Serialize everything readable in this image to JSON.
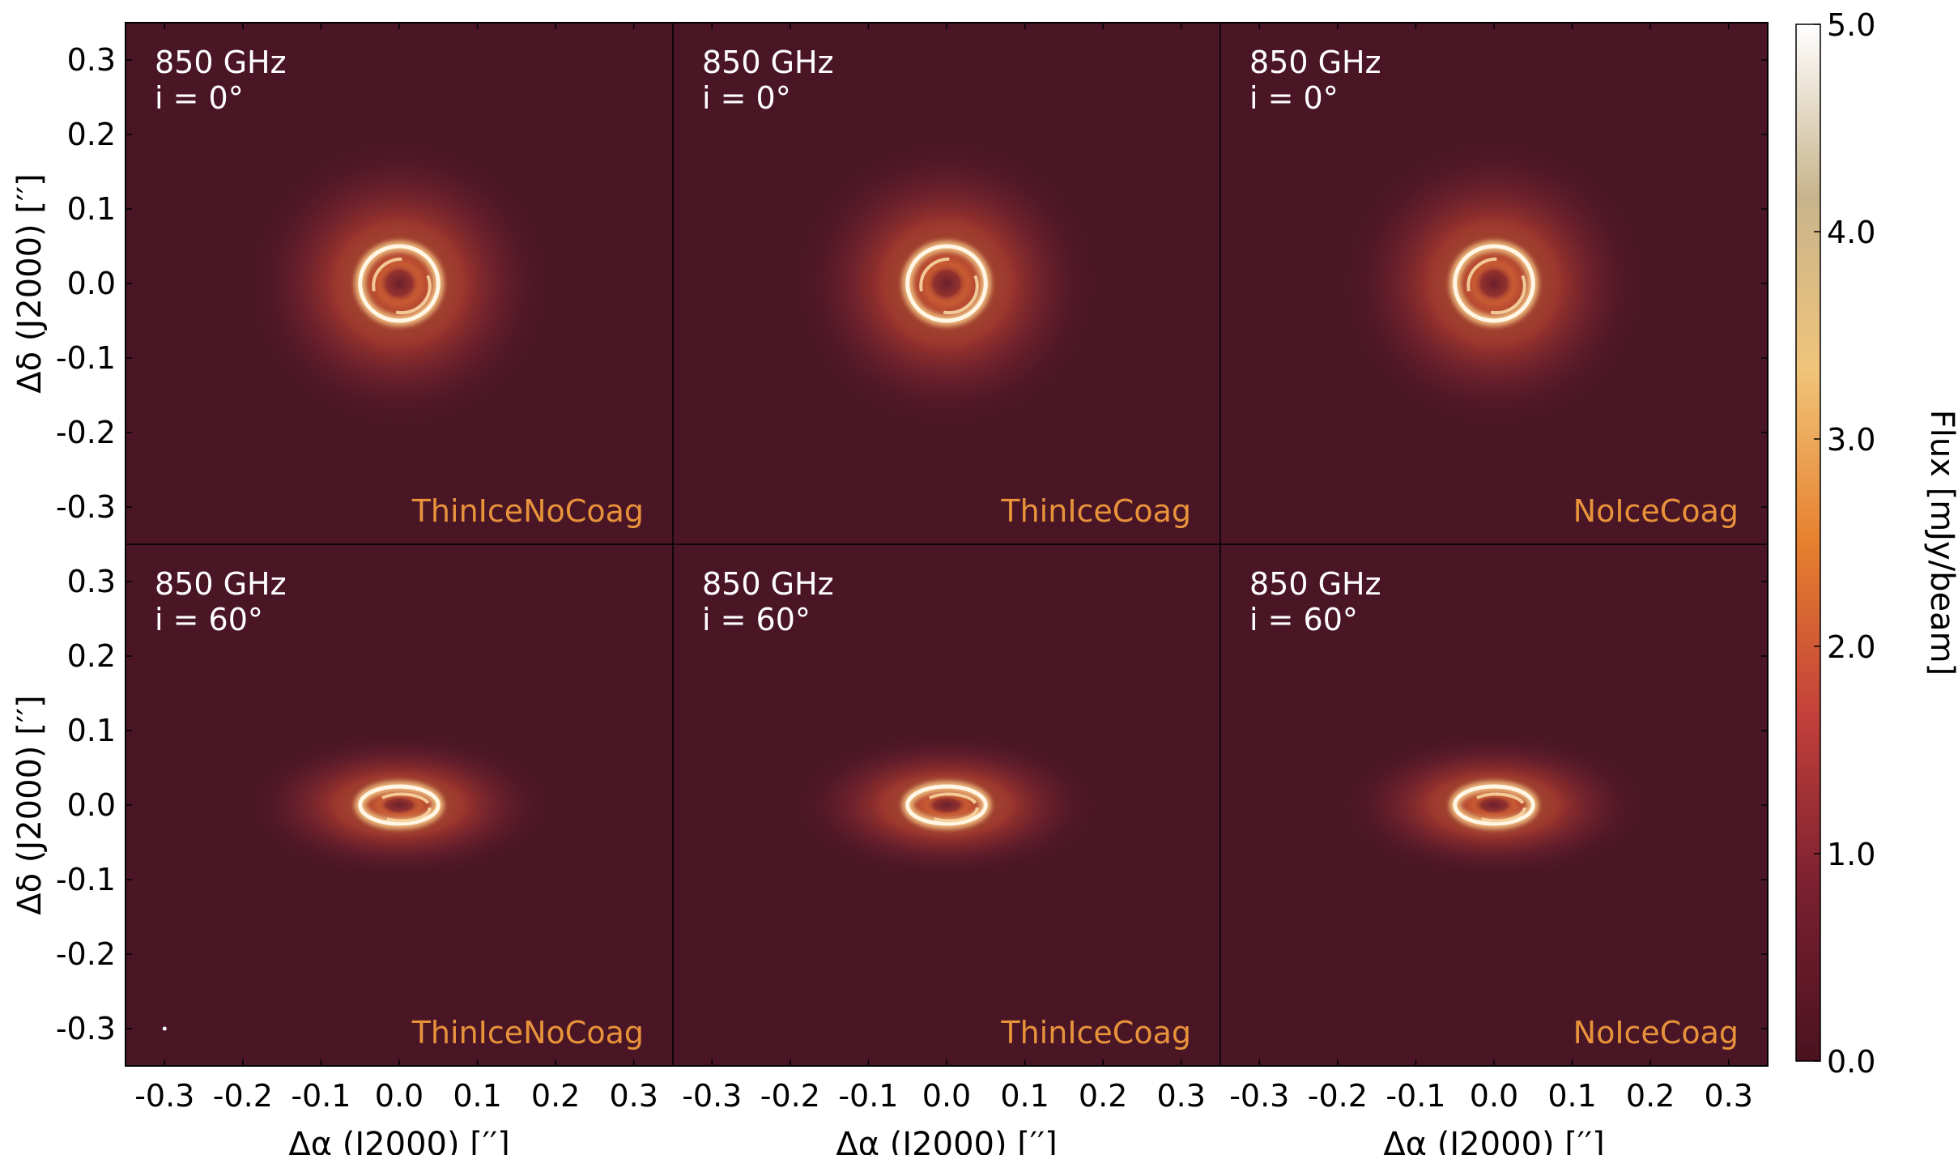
{
  "chart_data": {
    "type": "heatmap",
    "layout": "2x3 grid of intensity maps sharing one colorbar",
    "xlabel": "Δα (J2000) [′′]",
    "ylabel": "Δδ (J2000) [′′]",
    "xlim": [
      -0.35,
      0.35
    ],
    "ylim": [
      -0.35,
      0.35
    ],
    "xticks": [
      "-0.3",
      "-0.2",
      "-0.1",
      "0.0",
      "0.1",
      "0.2",
      "0.3"
    ],
    "yticks": [
      "0.3",
      "0.2",
      "0.1",
      "0.0",
      "-0.1",
      "-0.2",
      "-0.3"
    ],
    "colorbar": {
      "label": "Flux [mJy/beam]",
      "range": [
        0.0,
        5.0
      ],
      "ticks": [
        "0.0",
        "1.0",
        "2.0",
        "3.0",
        "4.0",
        "5.0"
      ],
      "colors": [
        "#4a1220",
        "#7a2030",
        "#c2403a",
        "#e6802e",
        "#f0c47a",
        "#c8b48c",
        "#ffffff"
      ]
    },
    "model_label_color": "#e8923a",
    "background_color": "#4a1626",
    "panels": [
      {
        "frequency": "850 GHz",
        "inclination": "i = 0°",
        "model": "ThinIceNoCoag",
        "inc_deg": 0,
        "ring_radius_arcsec": 0.05
      },
      {
        "frequency": "850 GHz",
        "inclination": "i = 0°",
        "model": "ThinIceCoag",
        "inc_deg": 0,
        "ring_radius_arcsec": 0.05
      },
      {
        "frequency": "850 GHz",
        "inclination": "i = 0°",
        "model": "NoIceCoag",
        "inc_deg": 0,
        "ring_radius_arcsec": 0.05
      },
      {
        "frequency": "850 GHz",
        "inclination": "i = 60°",
        "model": "ThinIceNoCoag",
        "inc_deg": 60,
        "ring_radius_arcsec": 0.05
      },
      {
        "frequency": "850 GHz",
        "inclination": "i = 60°",
        "model": "ThinIceCoag",
        "inc_deg": 60,
        "ring_radius_arcsec": 0.05
      },
      {
        "frequency": "850 GHz",
        "inclination": "i = 60°",
        "model": "NoIceCoag",
        "inc_deg": 60,
        "ring_radius_arcsec": 0.05
      }
    ]
  }
}
